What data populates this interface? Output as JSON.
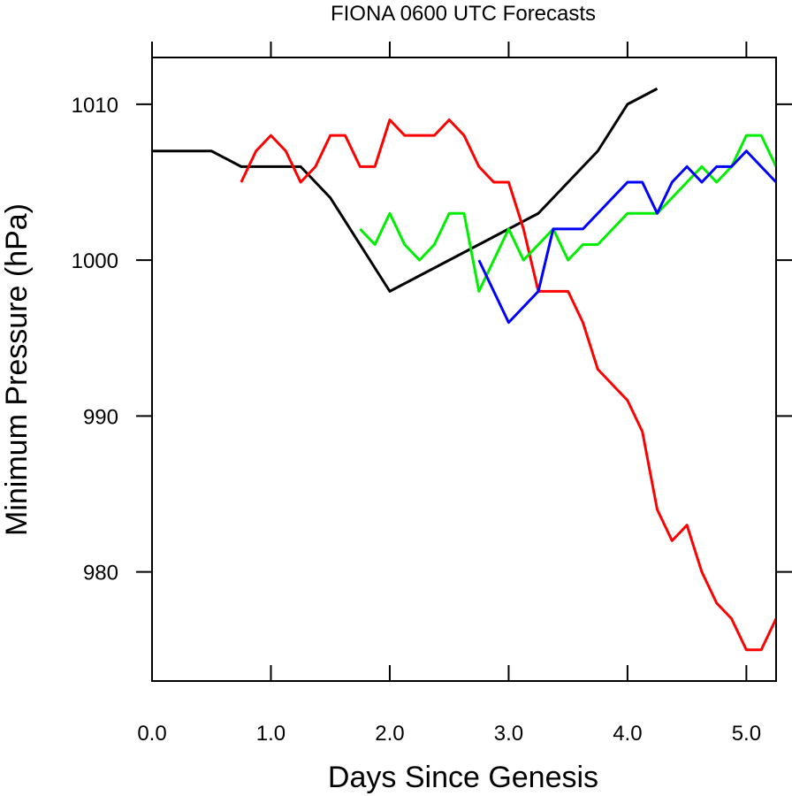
{
  "chart_data": {
    "type": "line",
    "title": "FIONA 0600 UTC Forecasts",
    "xlabel": "Days Since Genesis",
    "ylabel": "Minimum Pressure (hPa)",
    "xlim": [
      0,
      5.25
    ],
    "ylim": [
      973,
      1013
    ],
    "x_ticks": [
      0,
      1,
      2,
      3,
      4,
      5
    ],
    "x_tick_labels": [
      "0.0",
      "1.0",
      "2.0",
      "3.0",
      "4.0",
      "5.0"
    ],
    "y_ticks": [
      980,
      990,
      1000,
      1010
    ],
    "y_tick_labels": [
      "980",
      "990",
      "1000",
      "1010"
    ],
    "grid": false,
    "series": [
      {
        "color": "#000000",
        "x": [
          0,
          0.5,
          0.75,
          1.0,
          1.25,
          1.5,
          2.0,
          2.25,
          2.5,
          2.75,
          3.0,
          3.25,
          3.5,
          3.75,
          4.0,
          4.25
        ],
        "y": [
          1007,
          1007,
          1006,
          1006,
          1006,
          1004,
          998,
          999,
          1000,
          1001,
          1002,
          1003,
          1005,
          1007,
          1010,
          1011
        ]
      },
      {
        "color": "#ff0000",
        "x": [
          0.75,
          0.875,
          1.0,
          1.125,
          1.25,
          1.375,
          1.5,
          1.625,
          1.75,
          1.875,
          2.0,
          2.125,
          2.25,
          2.375,
          2.5,
          2.625,
          2.75,
          2.875,
          3.0,
          3.125,
          3.25,
          3.375,
          3.5,
          3.625,
          3.75,
          3.875,
          4.0,
          4.125,
          4.25,
          4.375,
          4.5,
          4.625,
          4.75,
          4.875,
          5.0,
          5.125,
          5.25
        ],
        "y": [
          1005,
          1007,
          1008,
          1007,
          1005,
          1006,
          1008,
          1008,
          1006,
          1006,
          1009,
          1008,
          1008,
          1008,
          1009,
          1008,
          1006,
          1005,
          1005,
          1002,
          998,
          998,
          998,
          996,
          993,
          992,
          991,
          989,
          984,
          982,
          983,
          980,
          978,
          977,
          975,
          975,
          977
        ]
      },
      {
        "color": "#00ee00",
        "x": [
          1.75,
          1.875,
          2.0,
          2.125,
          2.25,
          2.375,
          2.5,
          2.625,
          2.75,
          2.875,
          3.0,
          3.125,
          3.25,
          3.375,
          3.5,
          3.625,
          3.75,
          3.875,
          4.0,
          4.125,
          4.25,
          4.375,
          4.5,
          4.625,
          4.75,
          4.875,
          5.0,
          5.125,
          5.25
        ],
        "y": [
          1002,
          1001,
          1003,
          1001,
          1000,
          1001,
          1003,
          1003,
          998,
          1000,
          1002,
          1000,
          1001,
          1002,
          1000,
          1001,
          1001,
          1002,
          1003,
          1003,
          1003,
          1004,
          1005,
          1006,
          1005,
          1006,
          1008,
          1008,
          1006
        ]
      },
      {
        "color": "#0000ff",
        "x": [
          2.75,
          3.0,
          3.25,
          3.375,
          3.5,
          3.625,
          3.75,
          3.875,
          4.0,
          4.125,
          4.25,
          4.375,
          4.5,
          4.625,
          4.75,
          4.875,
          5.0,
          5.125,
          5.25
        ],
        "y": [
          1000,
          996,
          998,
          1002,
          1002,
          1002,
          1003,
          1004,
          1005,
          1005,
          1003,
          1005,
          1006,
          1005,
          1006,
          1006,
          1007,
          1006,
          1005
        ]
      }
    ]
  }
}
